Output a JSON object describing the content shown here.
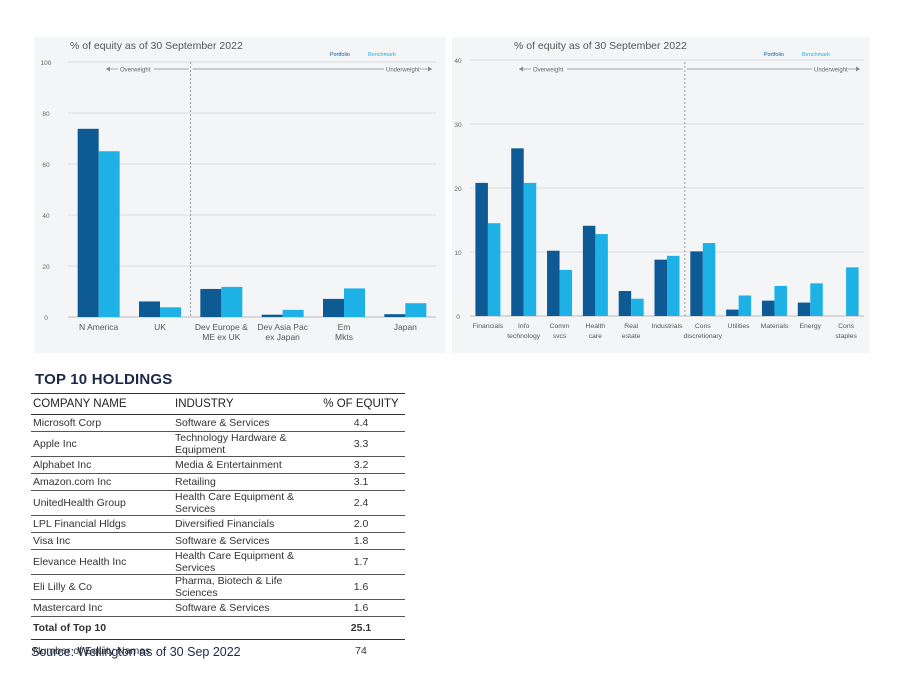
{
  "colors": {
    "portfolio": "#0d5a94",
    "benchmark": "#1db1e6",
    "grid": "#d9dce1",
    "axis_text": "#666666",
    "panel_bg": "#f4f5f7"
  },
  "chart_data": [
    {
      "type": "bar",
      "title": "% of equity as of 30 September 2022",
      "legend": [
        "Portfolio",
        "Benchmark"
      ],
      "legend_position": "top-right",
      "overweight_label": "Overweight",
      "underweight_label": "Underweight",
      "divider_after_category": 1,
      "yticks": [
        0,
        20,
        40,
        60,
        80,
        100
      ],
      "ylim": [
        0,
        100
      ],
      "categories": [
        [
          "N America"
        ],
        [
          "UK"
        ],
        [
          "Dev Europe &",
          "ME ex UK"
        ],
        [
          "Dev Asia Pac",
          "ex Japan"
        ],
        [
          "Em",
          "Mkts"
        ],
        [
          "Japan"
        ]
      ],
      "series": [
        {
          "name": "Portfolio",
          "values": [
            73.8,
            6.1,
            11.0,
            0.9,
            7.1,
            1.1
          ]
        },
        {
          "name": "Benchmark",
          "values": [
            65.0,
            3.8,
            11.8,
            2.8,
            11.2,
            5.4
          ]
        }
      ]
    },
    {
      "type": "bar",
      "title": "% of equity as of 30 September 2022",
      "legend": [
        "Portfolio",
        "Benchmark"
      ],
      "legend_position": "top-right",
      "overweight_label": "Overweight",
      "underweight_label": "Underweight",
      "divider_after_category": 5,
      "yticks": [
        0,
        10,
        20,
        30,
        40
      ],
      "ylim": [
        0,
        40
      ],
      "categories": [
        [
          "Financials"
        ],
        [
          "Info",
          "technology"
        ],
        [
          "Comm",
          "svcs"
        ],
        [
          "Health",
          "care"
        ],
        [
          "Real",
          "estate"
        ],
        [
          "Industrials"
        ],
        [
          "Cons",
          "discretionary"
        ],
        [
          "Utilities"
        ],
        [
          "Materials"
        ],
        [
          "Energy"
        ],
        [
          "Cons",
          "staples"
        ]
      ],
      "series": [
        {
          "name": "Portfolio",
          "values": [
            20.8,
            26.2,
            10.2,
            14.1,
            3.9,
            8.8,
            10.1,
            1.0,
            2.4,
            2.1,
            0.0
          ]
        },
        {
          "name": "Benchmark",
          "values": [
            14.5,
            20.8,
            7.2,
            12.8,
            2.7,
            9.4,
            11.4,
            3.2,
            4.7,
            5.1,
            7.6
          ]
        }
      ]
    }
  ],
  "holdings": {
    "title": "TOP 10 HOLDINGS",
    "headers": {
      "company": "COMPANY NAME",
      "industry": "INDUSTRY",
      "equity": "% OF EQUITY"
    },
    "rows": [
      {
        "company": "Microsoft Corp",
        "industry": "Software & Services",
        "equity": "4.4"
      },
      {
        "company": "Apple Inc",
        "industry": "Technology Hardware & Equipment",
        "equity": "3.3"
      },
      {
        "company": "Alphabet Inc",
        "industry": "Media & Entertainment",
        "equity": "3.2"
      },
      {
        "company": "Amazon.com Inc",
        "industry": "Retailing",
        "equity": "3.1"
      },
      {
        "company": "UnitedHealth Group",
        "industry": "Health Care Equipment & Services",
        "equity": "2.4"
      },
      {
        "company": "LPL Financial Hldgs",
        "industry": "Diversified Financials",
        "equity": "2.0"
      },
      {
        "company": "Visa Inc",
        "industry": "Software & Services",
        "equity": "1.8"
      },
      {
        "company": "Elevance Health Inc",
        "industry": "Health Care Equipment & Services",
        "equity": "1.7"
      },
      {
        "company": "Eli Lilly & Co",
        "industry": "Pharma, Biotech & Life Sciences",
        "equity": "1.6"
      },
      {
        "company": "Mastercard Inc",
        "industry": "Software & Services",
        "equity": "1.6"
      }
    ],
    "total": {
      "label": "Total of Top 10",
      "value": "25.1"
    },
    "names": {
      "label": "Number of Equity Names",
      "value": "74"
    }
  },
  "source": "Source: Wellington as of 30 Sep 2022"
}
